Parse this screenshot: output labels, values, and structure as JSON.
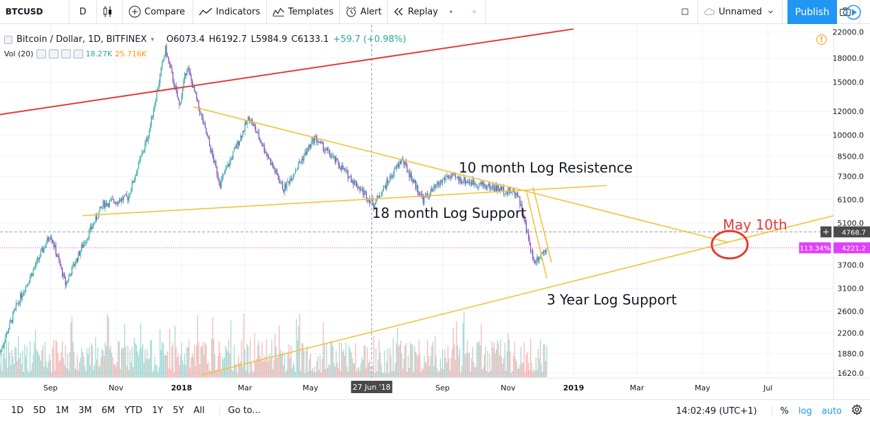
{
  "toolbar": {
    "symbol": "BTCUSD",
    "interval": "D",
    "compare": "Compare",
    "indicators": "Indicators",
    "templates": "Templates",
    "alert": "Alert",
    "replay": "Replay",
    "layout_name": "Unnamed",
    "publish": "Publish"
  },
  "legend": {
    "title": "Bitcoin / Dollar, 1D, BITFINEX",
    "open": "O6073.4",
    "high": "H6192.7",
    "low": "L5984.9",
    "close": "C6133.1",
    "change": "+59.7 (+0.98%)"
  },
  "volume_legend": {
    "name": "Vol (20)",
    "v1": "18.27K",
    "v2": "25.716K"
  },
  "price_axis": {
    "ticks": [
      "22000.0",
      "18000.0",
      "15000.0",
      "12000.0",
      "10000.0",
      "8500.0",
      "7300.0",
      "6100.0",
      "5100.0",
      "3700.0",
      "3100.0",
      "2600.0",
      "2200.0",
      "1880.0",
      "1620.0"
    ],
    "crosshair_price": "4768.7",
    "current_price": "4221.2",
    "percent_badge": "113.34%"
  },
  "time_axis": {
    "ticks": [
      "Sep",
      "Nov",
      "2018",
      "Mar",
      "May",
      "Sep",
      "Nov",
      "2019",
      "Mar",
      "May",
      "Jul"
    ],
    "crosshair_date": "27 Jun '18"
  },
  "annotations": {
    "resistance": "10 month Log Resistence",
    "support18": "18 month Log Support",
    "support3y": "3 Year Log Support",
    "target": "May 10th"
  },
  "bottom": {
    "ranges": [
      "1D",
      "5D",
      "1M",
      "3M",
      "6M",
      "YTD",
      "1Y",
      "5Y",
      "All"
    ],
    "goto": "Go to...",
    "clock": "14:02:49 (UTC+1)",
    "percent": "%",
    "log": "log",
    "auto": "auto"
  },
  "colors": {
    "up": "#26a69a",
    "down": "#7a3fb0",
    "trend_red": "#e53935",
    "trend_yellow": "#f2c23a",
    "annot_red": "#e53935",
    "accent": "#2196f3",
    "current_price": "#e040fb"
  },
  "chart_data": {
    "type": "candlestick",
    "symbol": "Bitcoin / Dollar, 1D, BITFINEX",
    "scale": "log",
    "ylim": [
      1560,
      23000
    ],
    "x_range": [
      "2017-07-16",
      "2019-08-31"
    ],
    "price_anchors": [
      {
        "date": "2017-07-16",
        "close": 1900
      },
      {
        "date": "2017-08-01",
        "close": 2750
      },
      {
        "date": "2017-09-01",
        "close": 4700
      },
      {
        "date": "2017-09-15",
        "close": 3200
      },
      {
        "date": "2017-10-01",
        "close": 4300
      },
      {
        "date": "2017-10-20",
        "close": 5900
      },
      {
        "date": "2017-11-12",
        "close": 6200
      },
      {
        "date": "2017-12-01",
        "close": 10000
      },
      {
        "date": "2017-12-17",
        "close": 19300
      },
      {
        "date": "2017-12-30",
        "close": 12500
      },
      {
        "date": "2018-01-06",
        "close": 17000
      },
      {
        "date": "2018-02-06",
        "close": 6900
      },
      {
        "date": "2018-03-05",
        "close": 11500
      },
      {
        "date": "2018-04-06",
        "close": 6600
      },
      {
        "date": "2018-05-05",
        "close": 9800
      },
      {
        "date": "2018-06-29",
        "close": 5900
      },
      {
        "date": "2018-07-25",
        "close": 8300
      },
      {
        "date": "2018-08-14",
        "close": 6100
      },
      {
        "date": "2018-09-05",
        "close": 7300
      },
      {
        "date": "2018-11-10",
        "close": 6400
      },
      {
        "date": "2018-11-25",
        "close": 3800
      },
      {
        "date": "2018-12-07",
        "close": 4221
      }
    ],
    "trendlines": [
      {
        "name": "red resistance",
        "from": {
          "date": "2017-07-16",
          "price": 11700
        },
        "to": {
          "date": "2019-01-01",
          "price": 22500
        }
      },
      {
        "name": "10 month Log Resistence",
        "from": {
          "date": "2018-01-12",
          "price": 12400
        },
        "to": {
          "date": "2019-05-25",
          "price": 4400
        }
      },
      {
        "name": "18 month Log Support",
        "from": {
          "date": "2017-10-01",
          "price": 5400
        },
        "to": {
          "date": "2019-02-01",
          "price": 6800
        }
      },
      {
        "name": "3 Year Log Support",
        "from": {
          "date": "2018-01-20",
          "price": 1600
        },
        "to": {
          "date": "2019-08-31",
          "price": 5400
        }
      }
    ]
  }
}
